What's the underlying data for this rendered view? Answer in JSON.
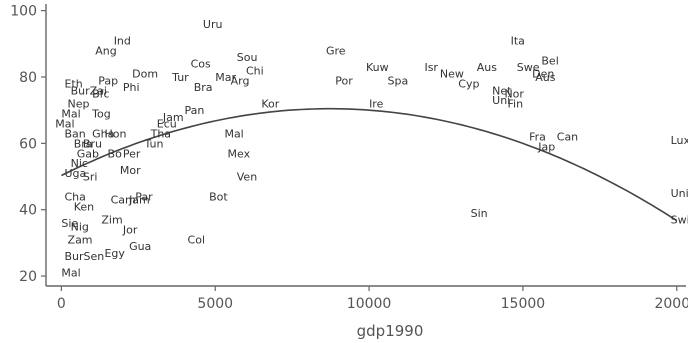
{
  "chart_data": {
    "type": "scatter",
    "title": "",
    "xlabel": "gdp1990",
    "ylabel": "",
    "xlim": [
      -500,
      20300
    ],
    "ylim": [
      17,
      102
    ],
    "xticks": [
      0,
      5000,
      10000,
      15000,
      20000
    ],
    "yticks": [
      20,
      40,
      60,
      80,
      100
    ],
    "grid": false,
    "legend": "none",
    "marker": "text labels",
    "fit": {
      "type": "quadratic",
      "coefficients": [
        50.3,
        0.00462,
        -2.65e-07
      ]
    },
    "points": [
      {
        "label": "Uru",
        "x": 4600,
        "y": 96
      },
      {
        "label": "Ind",
        "x": 1700,
        "y": 91
      },
      {
        "label": "Ang",
        "x": 1100,
        "y": 88
      },
      {
        "label": "Ita",
        "x": 14600,
        "y": 91
      },
      {
        "label": "Gre",
        "x": 8600,
        "y": 88
      },
      {
        "label": "Sou",
        "x": 5700,
        "y": 86
      },
      {
        "label": "Cos",
        "x": 4200,
        "y": 84
      },
      {
        "label": "Chi",
        "x": 6000,
        "y": 82
      },
      {
        "label": "Kuw",
        "x": 9900,
        "y": 83
      },
      {
        "label": "Isr",
        "x": 11800,
        "y": 83
      },
      {
        "label": "Aus",
        "x": 13500,
        "y": 83
      },
      {
        "label": "Swe",
        "x": 14800,
        "y": 83
      },
      {
        "label": "Bel",
        "x": 15600,
        "y": 85
      },
      {
        "label": "Den",
        "x": 15300,
        "y": 81
      },
      {
        "label": "Aus",
        "x": 15400,
        "y": 80
      },
      {
        "label": "New",
        "x": 12300,
        "y": 81
      },
      {
        "label": "Dom",
        "x": 2300,
        "y": 81
      },
      {
        "label": "Tur",
        "x": 3600,
        "y": 80
      },
      {
        "label": "Mar",
        "x": 5000,
        "y": 80
      },
      {
        "label": "Arg",
        "x": 5500,
        "y": 79
      },
      {
        "label": "Pap",
        "x": 1200,
        "y": 79
      },
      {
        "label": "Bra",
        "x": 4300,
        "y": 77
      },
      {
        "label": "Eth",
        "x": 100,
        "y": 78
      },
      {
        "label": "Phi",
        "x": 2000,
        "y": 77
      },
      {
        "label": "Por",
        "x": 8900,
        "y": 79
      },
      {
        "label": "Spa",
        "x": 10600,
        "y": 79
      },
      {
        "label": "Cyp",
        "x": 12900,
        "y": 78
      },
      {
        "label": "BurZai",
        "x": 300,
        "y": 76
      },
      {
        "label": "Bfc",
        "x": 1000,
        "y": 75
      },
      {
        "label": "Net",
        "x": 14000,
        "y": 76
      },
      {
        "label": "Nor",
        "x": 14400,
        "y": 75
      },
      {
        "label": "Uni",
        "x": 14000,
        "y": 73
      },
      {
        "label": "Fin",
        "x": 14500,
        "y": 72
      },
      {
        "label": "Ire",
        "x": 10000,
        "y": 72
      },
      {
        "label": "Kor",
        "x": 6500,
        "y": 72
      },
      {
        "label": "Nep",
        "x": 200,
        "y": 72
      },
      {
        "label": "Pan",
        "x": 4000,
        "y": 70
      },
      {
        "label": "Mal",
        "x": 0,
        "y": 69
      },
      {
        "label": "Tog",
        "x": 1000,
        "y": 69
      },
      {
        "label": "Mal",
        "x": -200,
        "y": 66
      },
      {
        "label": "Jam",
        "x": 3300,
        "y": 68
      },
      {
        "label": "Ecu",
        "x": 3100,
        "y": 66
      },
      {
        "label": "Ban",
        "x": 100,
        "y": 63
      },
      {
        "label": "Gha",
        "x": 1000,
        "y": 63
      },
      {
        "label": "Hon",
        "x": 1400,
        "y": 63
      },
      {
        "label": "Tha",
        "x": 2900,
        "y": 63
      },
      {
        "label": "Mal",
        "x": 5300,
        "y": 63
      },
      {
        "label": "Fra",
        "x": 15200,
        "y": 62
      },
      {
        "label": "Can",
        "x": 16100,
        "y": 62
      },
      {
        "label": "Lux",
        "x": 19800,
        "y": 61
      },
      {
        "label": "Bra",
        "x": 400,
        "y": 60
      },
      {
        "label": "Bru",
        "x": 700,
        "y": 60
      },
      {
        "label": "Tun",
        "x": 2700,
        "y": 60
      },
      {
        "label": "Jap",
        "x": 15500,
        "y": 59
      },
      {
        "label": "Gab",
        "x": 500,
        "y": 57
      },
      {
        "label": "Bo",
        "x": 1500,
        "y": 57
      },
      {
        "label": "Per",
        "x": 2000,
        "y": 57
      },
      {
        "label": "Mex",
        "x": 5400,
        "y": 57
      },
      {
        "label": "Nic",
        "x": 300,
        "y": 54
      },
      {
        "label": "Mor",
        "x": 1900,
        "y": 52
      },
      {
        "label": "Uga",
        "x": 100,
        "y": 51
      },
      {
        "label": "Sri",
        "x": 700,
        "y": 50
      },
      {
        "label": "Ven",
        "x": 5700,
        "y": 50
      },
      {
        "label": "Cha",
        "x": 100,
        "y": 44
      },
      {
        "label": "Cam",
        "x": 1600,
        "y": 43
      },
      {
        "label": "Bot",
        "x": 4800,
        "y": 44
      },
      {
        "label": "Par",
        "x": 2400,
        "y": 44
      },
      {
        "label": "Jam",
        "x": 2200,
        "y": 43
      },
      {
        "label": "Uni",
        "x": 19800,
        "y": 45
      },
      {
        "label": "Ken",
        "x": 400,
        "y": 41
      },
      {
        "label": "Sin",
        "x": 13300,
        "y": 39
      },
      {
        "label": "Swi",
        "x": 19800,
        "y": 37
      },
      {
        "label": "Zim",
        "x": 1300,
        "y": 37
      },
      {
        "label": "Sie",
        "x": 0,
        "y": 36
      },
      {
        "label": "Nig",
        "x": 300,
        "y": 35
      },
      {
        "label": "Jor",
        "x": 2000,
        "y": 34
      },
      {
        "label": "Zam",
        "x": 200,
        "y": 31
      },
      {
        "label": "Col",
        "x": 4100,
        "y": 31
      },
      {
        "label": "Gua",
        "x": 2200,
        "y": 29
      },
      {
        "label": "Egy",
        "x": 1400,
        "y": 27
      },
      {
        "label": "BurSen",
        "x": 100,
        "y": 26
      },
      {
        "label": "Mal",
        "x": 0,
        "y": 21
      }
    ]
  }
}
